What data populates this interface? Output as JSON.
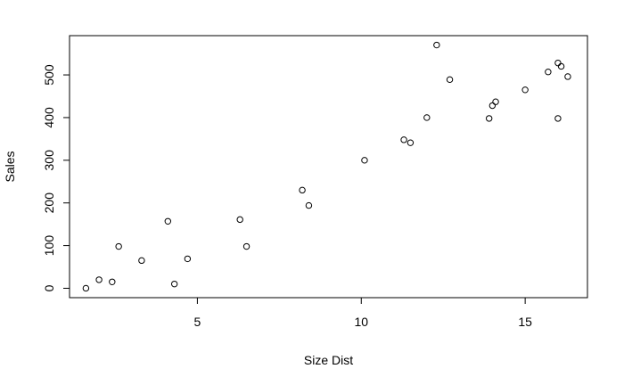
{
  "chart_data": {
    "type": "scatter",
    "title": "",
    "xlabel": "Size Dist",
    "ylabel": "Sales",
    "xlim": [
      1.1,
      16.9
    ],
    "ylim": [
      -22,
      592
    ],
    "x_ticks": [
      5,
      10,
      15
    ],
    "y_ticks": [
      0,
      100,
      200,
      300,
      400,
      500
    ],
    "grid": false,
    "legend": "none",
    "marker": "open-circle",
    "colors": {
      "background": "#ffffff",
      "axes": "#000000",
      "points": "#000000"
    },
    "points": [
      {
        "x": 1.6,
        "y": 0
      },
      {
        "x": 2.0,
        "y": 20
      },
      {
        "x": 2.4,
        "y": 15
      },
      {
        "x": 2.6,
        "y": 98
      },
      {
        "x": 3.3,
        "y": 65
      },
      {
        "x": 4.1,
        "y": 157
      },
      {
        "x": 4.3,
        "y": 10
      },
      {
        "x": 4.7,
        "y": 69
      },
      {
        "x": 6.3,
        "y": 161
      },
      {
        "x": 6.5,
        "y": 98
      },
      {
        "x": 8.2,
        "y": 230
      },
      {
        "x": 8.4,
        "y": 194
      },
      {
        "x": 10.1,
        "y": 300
      },
      {
        "x": 11.3,
        "y": 348
      },
      {
        "x": 11.5,
        "y": 341
      },
      {
        "x": 12.0,
        "y": 400
      },
      {
        "x": 12.3,
        "y": 570
      },
      {
        "x": 12.7,
        "y": 489
      },
      {
        "x": 13.9,
        "y": 398
      },
      {
        "x": 14.0,
        "y": 428
      },
      {
        "x": 14.1,
        "y": 437
      },
      {
        "x": 15.0,
        "y": 465
      },
      {
        "x": 15.7,
        "y": 507
      },
      {
        "x": 16.0,
        "y": 528
      },
      {
        "x": 16.0,
        "y": 398
      },
      {
        "x": 16.1,
        "y": 520
      },
      {
        "x": 16.3,
        "y": 496
      }
    ]
  }
}
